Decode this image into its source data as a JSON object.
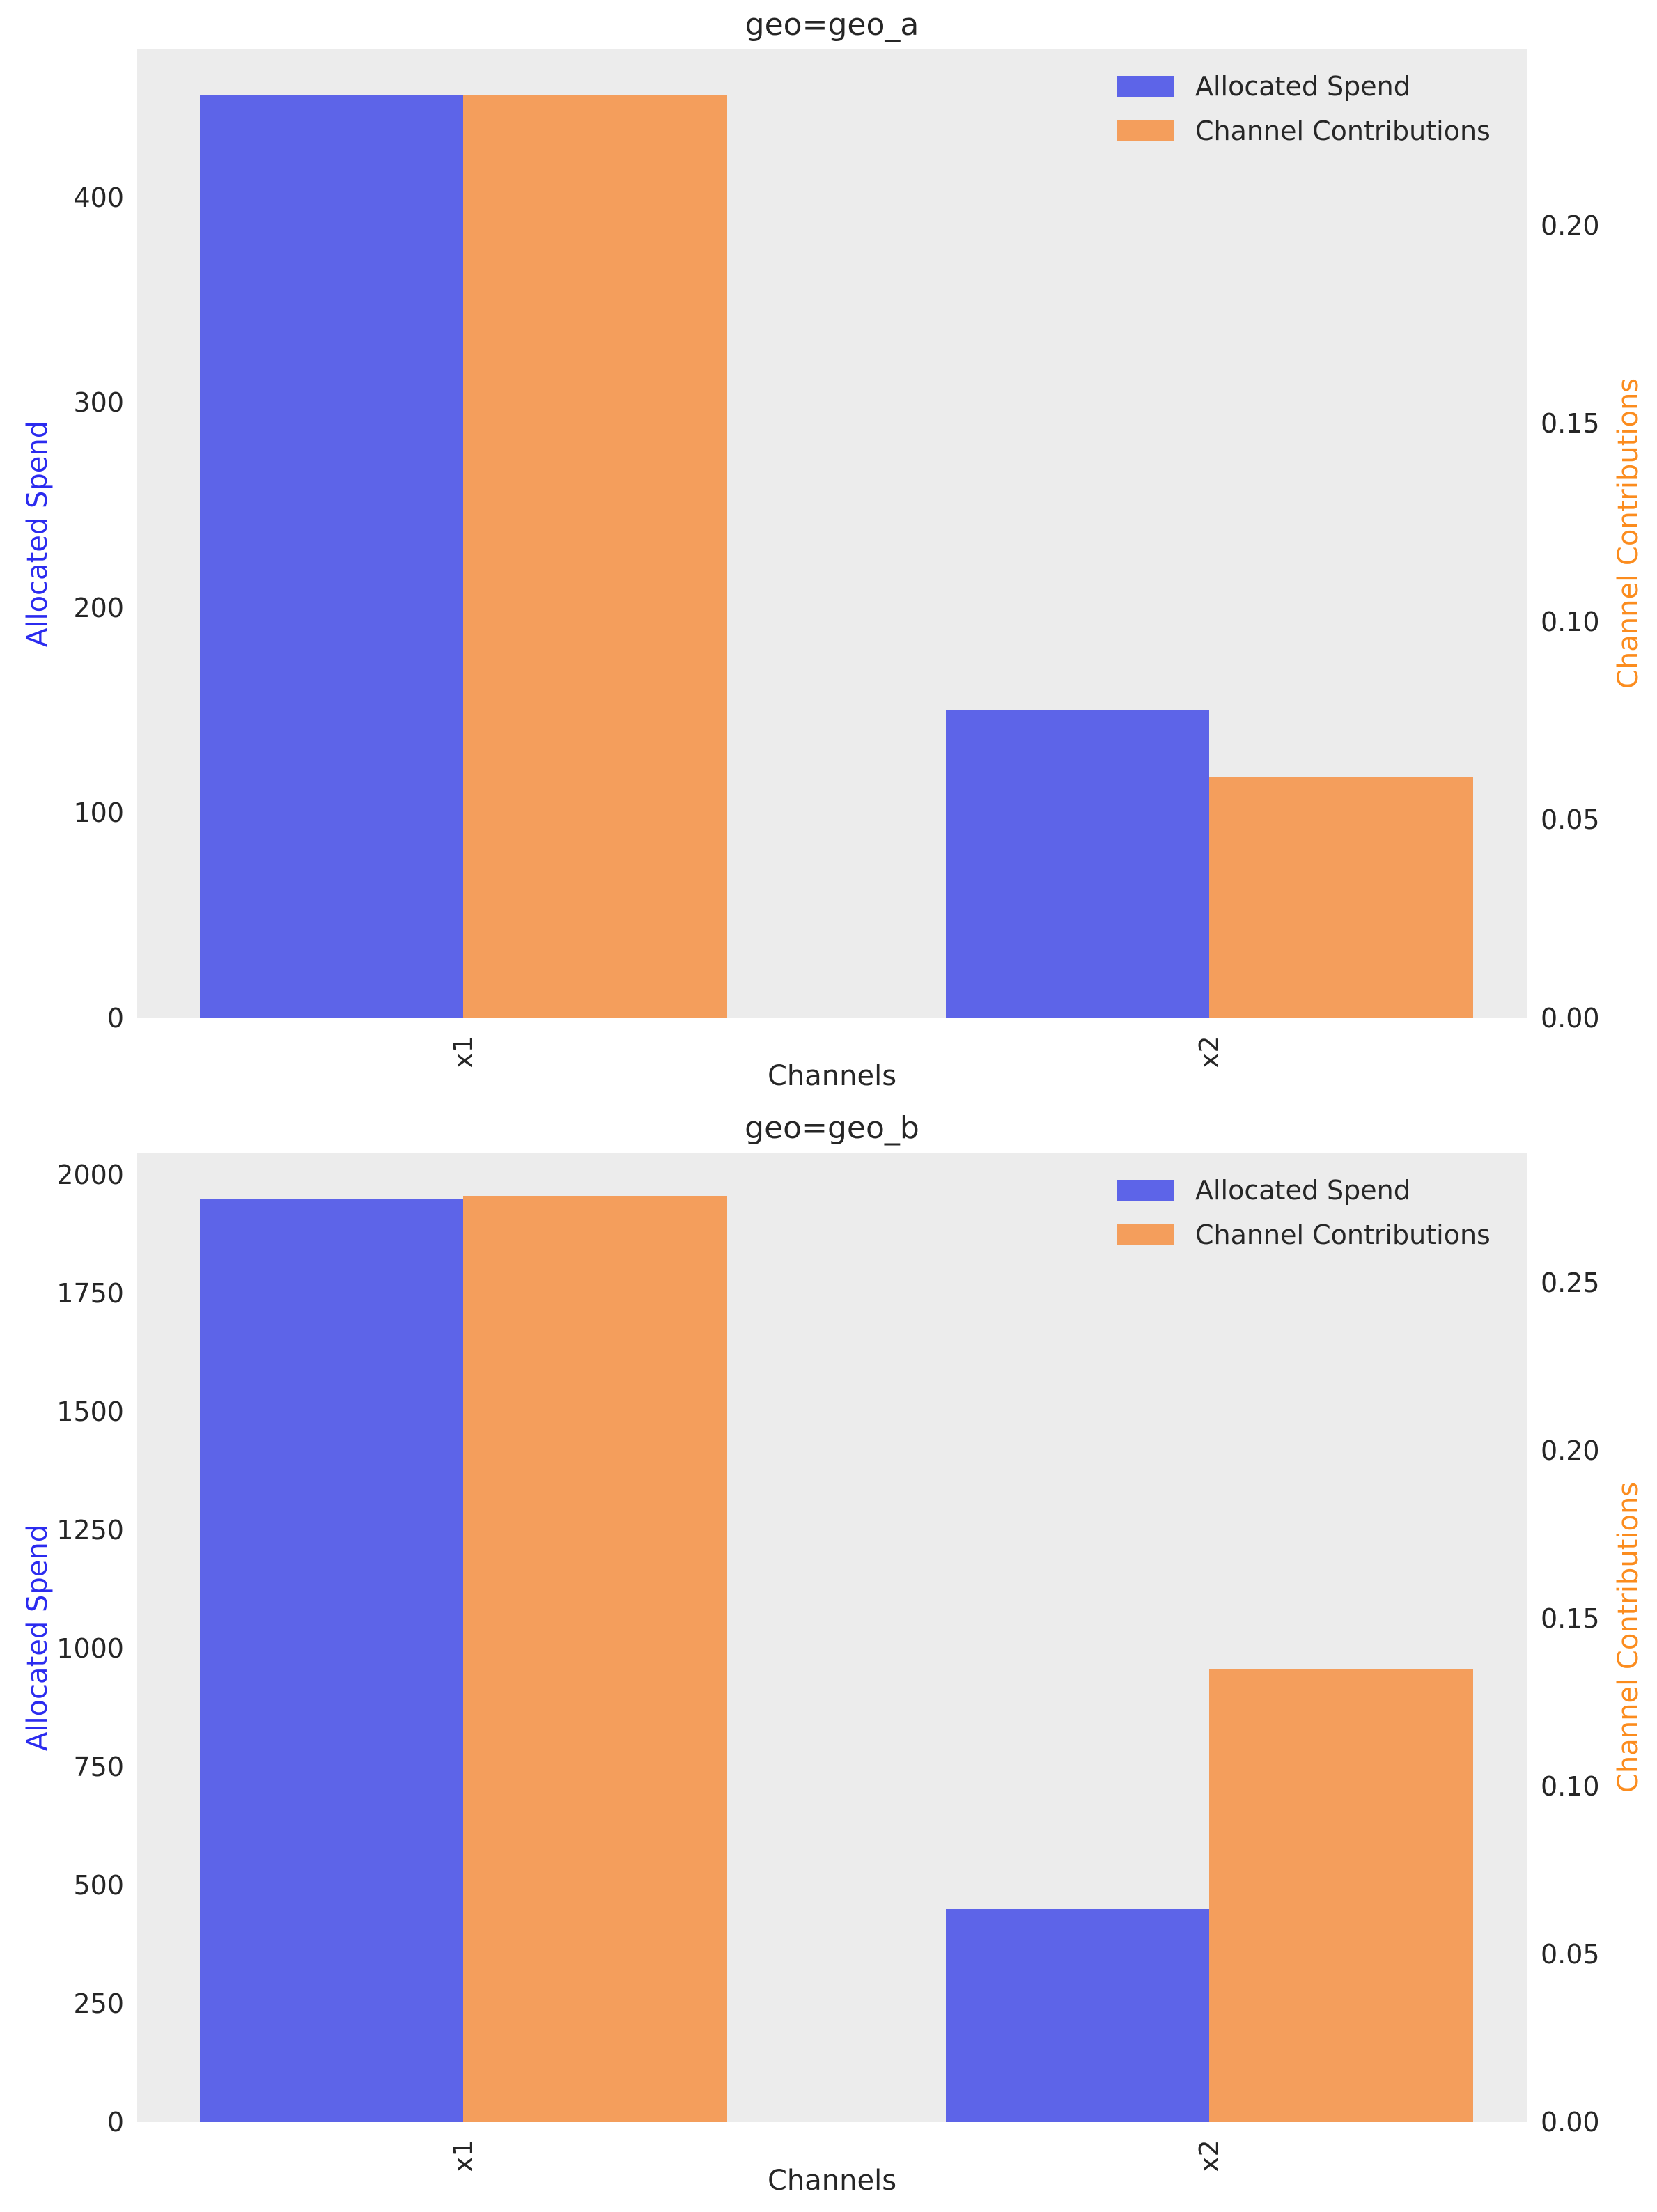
{
  "colors": {
    "spend_bar": "#5d64e8",
    "contrib_bar": "#f49e5c",
    "left_label": "#2b2bef",
    "right_label": "#fb8c1e",
    "plot_bg": "#ececec",
    "text": "#262626"
  },
  "chart_data": [
    {
      "type": "bar",
      "title": "geo=geo_a",
      "xlabel": "Channels",
      "categories": [
        "x1",
        "x2"
      ],
      "series": [
        {
          "name": "Allocated Spend",
          "axis": "left",
          "values": [
            450,
            150
          ]
        },
        {
          "name": "Channel Contributions",
          "axis": "right",
          "values": [
            0.233,
            0.061
          ]
        }
      ],
      "left_axis": {
        "label": "Allocated Spend",
        "ticks": [
          0,
          100,
          200,
          300,
          400
        ],
        "max": 472.5,
        "decimals": 0
      },
      "right_axis": {
        "label": "Channel Contributions",
        "ticks": [
          0,
          0.05,
          0.1,
          0.15,
          0.2
        ],
        "max": 0.2446,
        "decimals": 2
      },
      "legend": [
        "Allocated Spend",
        "Channel Contributions"
      ],
      "grid": false,
      "legend_position": "upper right"
    },
    {
      "type": "bar",
      "title": "geo=geo_b",
      "xlabel": "Channels",
      "categories": [
        "x1",
        "x2"
      ],
      "series": [
        {
          "name": "Allocated Spend",
          "axis": "left",
          "values": [
            1950,
            450
          ]
        },
        {
          "name": "Channel Contributions",
          "axis": "right",
          "values": [
            0.276,
            0.135
          ]
        }
      ],
      "left_axis": {
        "label": "Allocated Spend",
        "ticks": [
          0,
          250,
          500,
          750,
          1000,
          1250,
          1500,
          1750,
          2000
        ],
        "max": 2047.5,
        "decimals": 0
      },
      "right_axis": {
        "label": "Channel Contributions",
        "ticks": [
          0,
          0.05,
          0.1,
          0.15,
          0.2,
          0.25
        ],
        "max": 0.2888,
        "decimals": 2
      },
      "legend": [
        "Allocated Spend",
        "Channel Contributions"
      ],
      "grid": false,
      "legend_position": "upper right"
    }
  ]
}
